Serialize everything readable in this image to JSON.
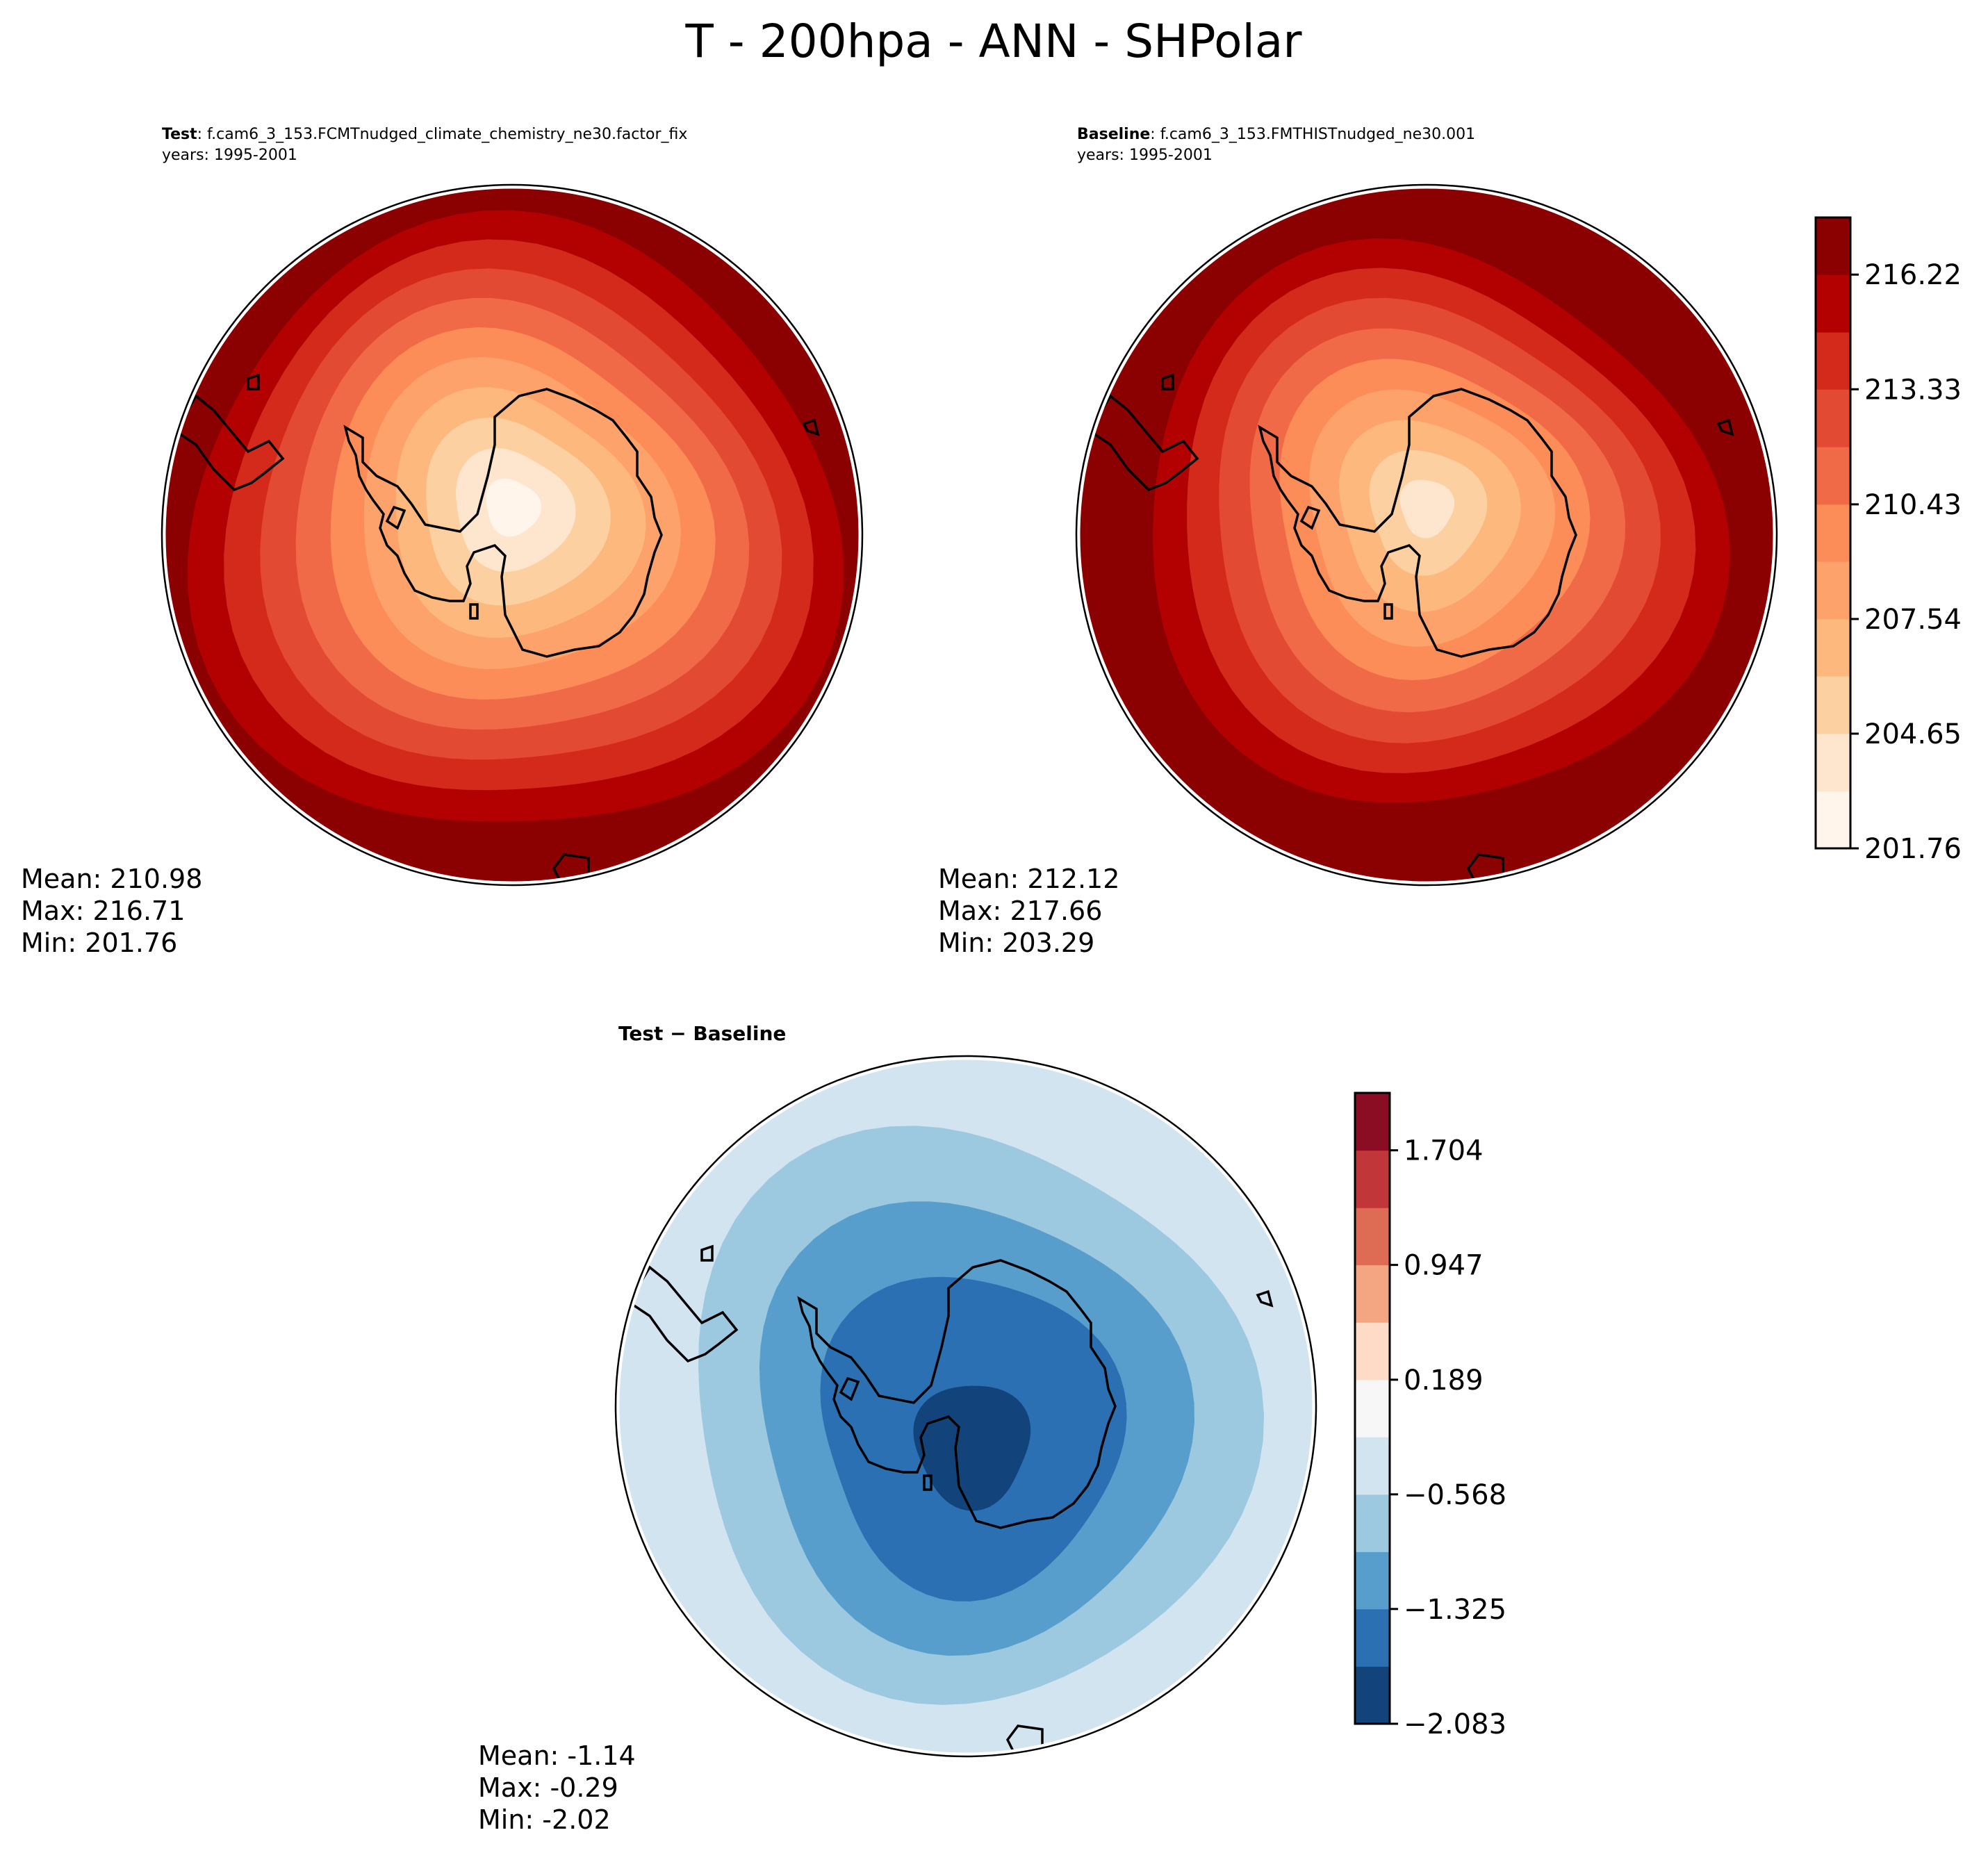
{
  "title": "T - 200hpa - ANN - SHPolar",
  "chart_data": [
    {
      "type": "heatmap",
      "projection": "south-polar-stereographic",
      "panel": "test",
      "label_bold": "Test",
      "label_rest": ": f.cam6_3_153.FCMTnudged_climate_chemistry_ne30.factor_fix",
      "years": "years: 1995-2001",
      "stats": {
        "mean": "Mean: 210.98",
        "max": "Max: 216.71",
        "min": "Min: 201.76"
      },
      "field_range": [
        201.76,
        216.71
      ],
      "colorbar_ref": "absolute"
    },
    {
      "type": "heatmap",
      "projection": "south-polar-stereographic",
      "panel": "baseline",
      "label_bold": "Baseline",
      "label_rest": ": f.cam6_3_153.FMTHISTnudged_ne30.001",
      "years": "years: 1995-2001",
      "stats": {
        "mean": "Mean: 212.12",
        "max": "Max: 217.66",
        "min": "Min: 203.29"
      },
      "field_range": [
        203.29,
        217.66
      ],
      "colorbar_ref": "absolute"
    },
    {
      "type": "heatmap",
      "projection": "south-polar-stereographic",
      "panel": "difference",
      "label_bold": "Test − Baseline",
      "stats": {
        "mean": "Mean: -1.14",
        "max": "Max: -0.29",
        "min": "Min: -2.02"
      },
      "field_range": [
        -2.02,
        -0.29
      ],
      "colorbar_ref": "difference"
    }
  ],
  "colorbars": {
    "absolute": {
      "levels": [
        201.76,
        203.2,
        204.65,
        206.1,
        207.54,
        208.99,
        210.43,
        211.88,
        213.33,
        214.77,
        216.22,
        217.66
      ],
      "tick_labels": [
        "201.76",
        "204.65",
        "207.54",
        "210.43",
        "213.33",
        "216.22"
      ],
      "colors": [
        "#fff5eb",
        "#fee6ce",
        "#fdd0a2",
        "#fdb97d",
        "#fda26b",
        "#fc8d59",
        "#f06a47",
        "#e34a33",
        "#d42a1c",
        "#b30000",
        "#8b0000"
      ]
    },
    "difference": {
      "levels": [
        -2.083,
        -1.704,
        -1.325,
        -0.947,
        -0.568,
        -0.189,
        0.189,
        0.568,
        0.947,
        1.325,
        1.704,
        2.083
      ],
      "tick_labels": [
        "−2.083",
        "−1.325",
        "−0.568",
        "0.189",
        "0.947",
        "1.704"
      ],
      "colors": [
        "#12437a",
        "#2b70b2",
        "#589ecd",
        "#9dc9e0",
        "#d2e4f0",
        "#f7f7f7",
        "#fddbc7",
        "#f4a582",
        "#de6c55",
        "#c13639",
        "#8b0d24"
      ]
    }
  }
}
